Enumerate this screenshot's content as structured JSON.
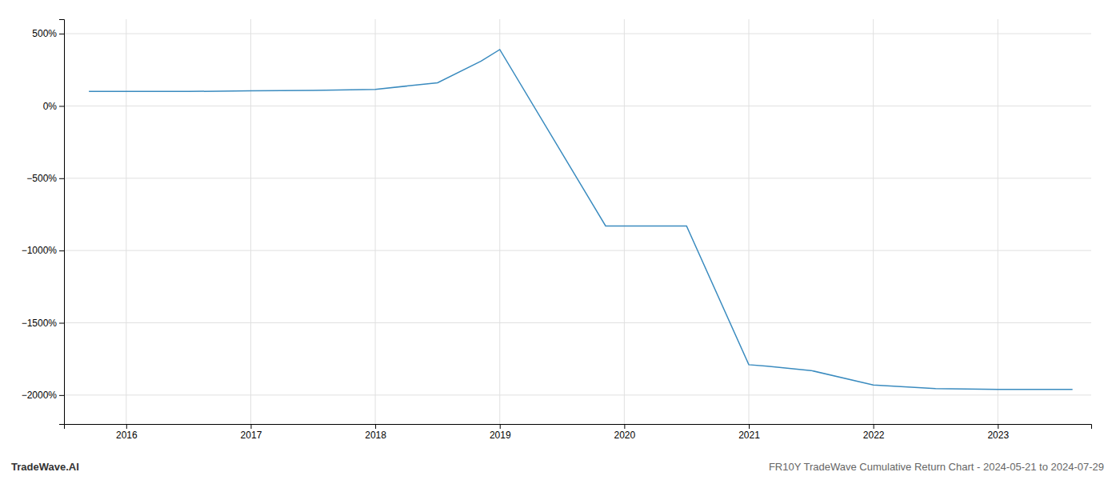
{
  "chart_data": {
    "type": "line",
    "title": "FR10Y TradeWave Cumulative Return Chart - 2024-05-21 to 2024-07-29",
    "annotations": [
      "TradeWave.AI"
    ],
    "x": [
      2015.7,
      2016.0,
      2016.5,
      2017.0,
      2017.5,
      2018.0,
      2018.5,
      2018.85,
      2019.0,
      2019.85,
      2020.0,
      2020.5,
      2021.0,
      2021.15,
      2021.5,
      2022.0,
      2022.5,
      2023.0,
      2023.6
    ],
    "values": [
      100,
      100,
      100,
      105,
      108,
      115,
      160,
      310,
      390,
      -830,
      -830,
      -830,
      -1790,
      -1800,
      -1830,
      -1930,
      -1955,
      -1960,
      -1960
    ],
    "color": "#3a8bbf",
    "xlim": [
      2015.5,
      2023.75
    ],
    "ylim": [
      -2200,
      600
    ],
    "xticks": [
      2016,
      2017,
      2018,
      2019,
      2020,
      2021,
      2022,
      2023
    ],
    "yticks": [
      {
        "value": 500,
        "label": "500%"
      },
      {
        "value": 0,
        "label": "0%"
      },
      {
        "value": -500,
        "label": "−500%"
      },
      {
        "value": -1000,
        "label": "−1000%"
      },
      {
        "value": -1500,
        "label": "−1500%"
      },
      {
        "value": -2000,
        "label": "−2000%"
      }
    ],
    "grid": true
  }
}
